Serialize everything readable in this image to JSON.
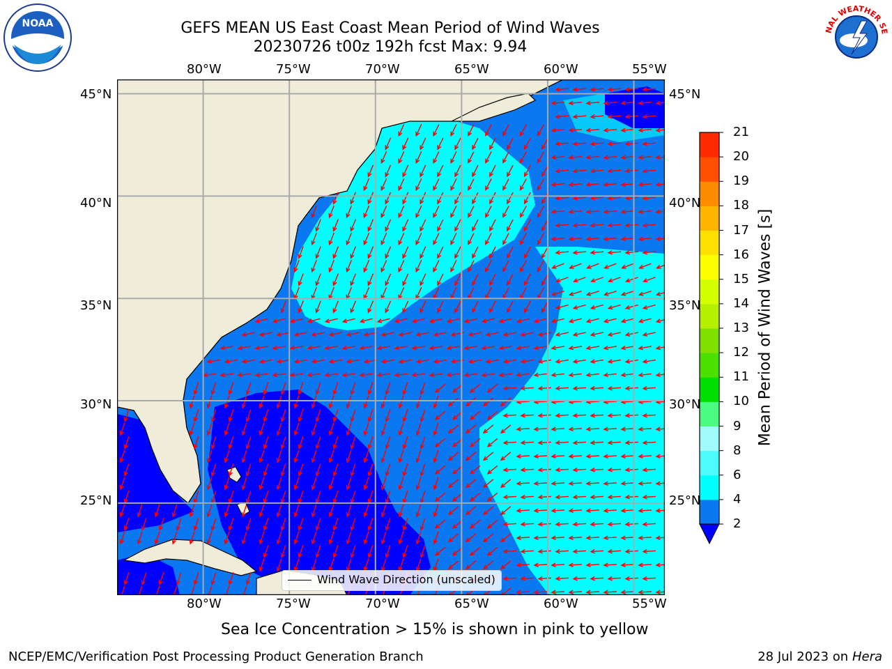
{
  "title_line1": "GEFS MEAN US East Coast Mean Period of Wind Waves",
  "title_line2": "20230726 t00z 192h fcst   Max: 9.94",
  "map": {
    "lon_labels": [
      "80°W",
      "75°W",
      "70°W",
      "65°W",
      "60°W",
      "55°W"
    ],
    "lat_labels": [
      "45°N",
      "40°N",
      "35°N",
      "30°N",
      "25°N"
    ],
    "lon_values": [
      -80,
      -75,
      -70,
      -65,
      -60,
      -55
    ],
    "lat_values": [
      45,
      40,
      35,
      30,
      25
    ],
    "lon_range": [
      -85,
      -53.2
    ],
    "lat_range": [
      20.5,
      45.7
    ],
    "land_color": "#efedd9",
    "ocean_colors": {
      "2-4": "#0a78f0",
      "4-6": "#00ffff",
      "below-2": "#0000ff"
    },
    "arrow_color": "#ff0000",
    "grid": true,
    "legend_label": "Wind Wave Direction (unscaled)"
  },
  "colorbar": {
    "title": "Mean Period of Wind Waves [s]",
    "ticks": [
      "2",
      "4",
      "6",
      "8",
      "9",
      "10",
      "11",
      "12",
      "13",
      "14",
      "15",
      "16",
      "17",
      "18",
      "19",
      "20",
      "21"
    ],
    "colors": [
      "#0a78f0",
      "#00ffff",
      "#4cfcfc",
      "#a0fcfc",
      "#4cfc80",
      "#00e000",
      "#4ce000",
      "#80e000",
      "#b4f000",
      "#d4ff00",
      "#fcff00",
      "#ffe000",
      "#ffb400",
      "#ff8c00",
      "#ff5000",
      "#ff2a00",
      "#ff0000"
    ],
    "under_color": "#0000ff"
  },
  "caption": "Sea Ice Concentration > 15% is shown in pink to yellow",
  "footer_left": "NCEP/EMC/Verification Post Processing Product Generation Branch",
  "footer_right_prefix": "28 Jul 2023 on ",
  "footer_right_host": "Hera",
  "logos": {
    "noaa_text": "NOAA",
    "nws_text": "NATIONAL WEATHER SERVICE"
  }
}
